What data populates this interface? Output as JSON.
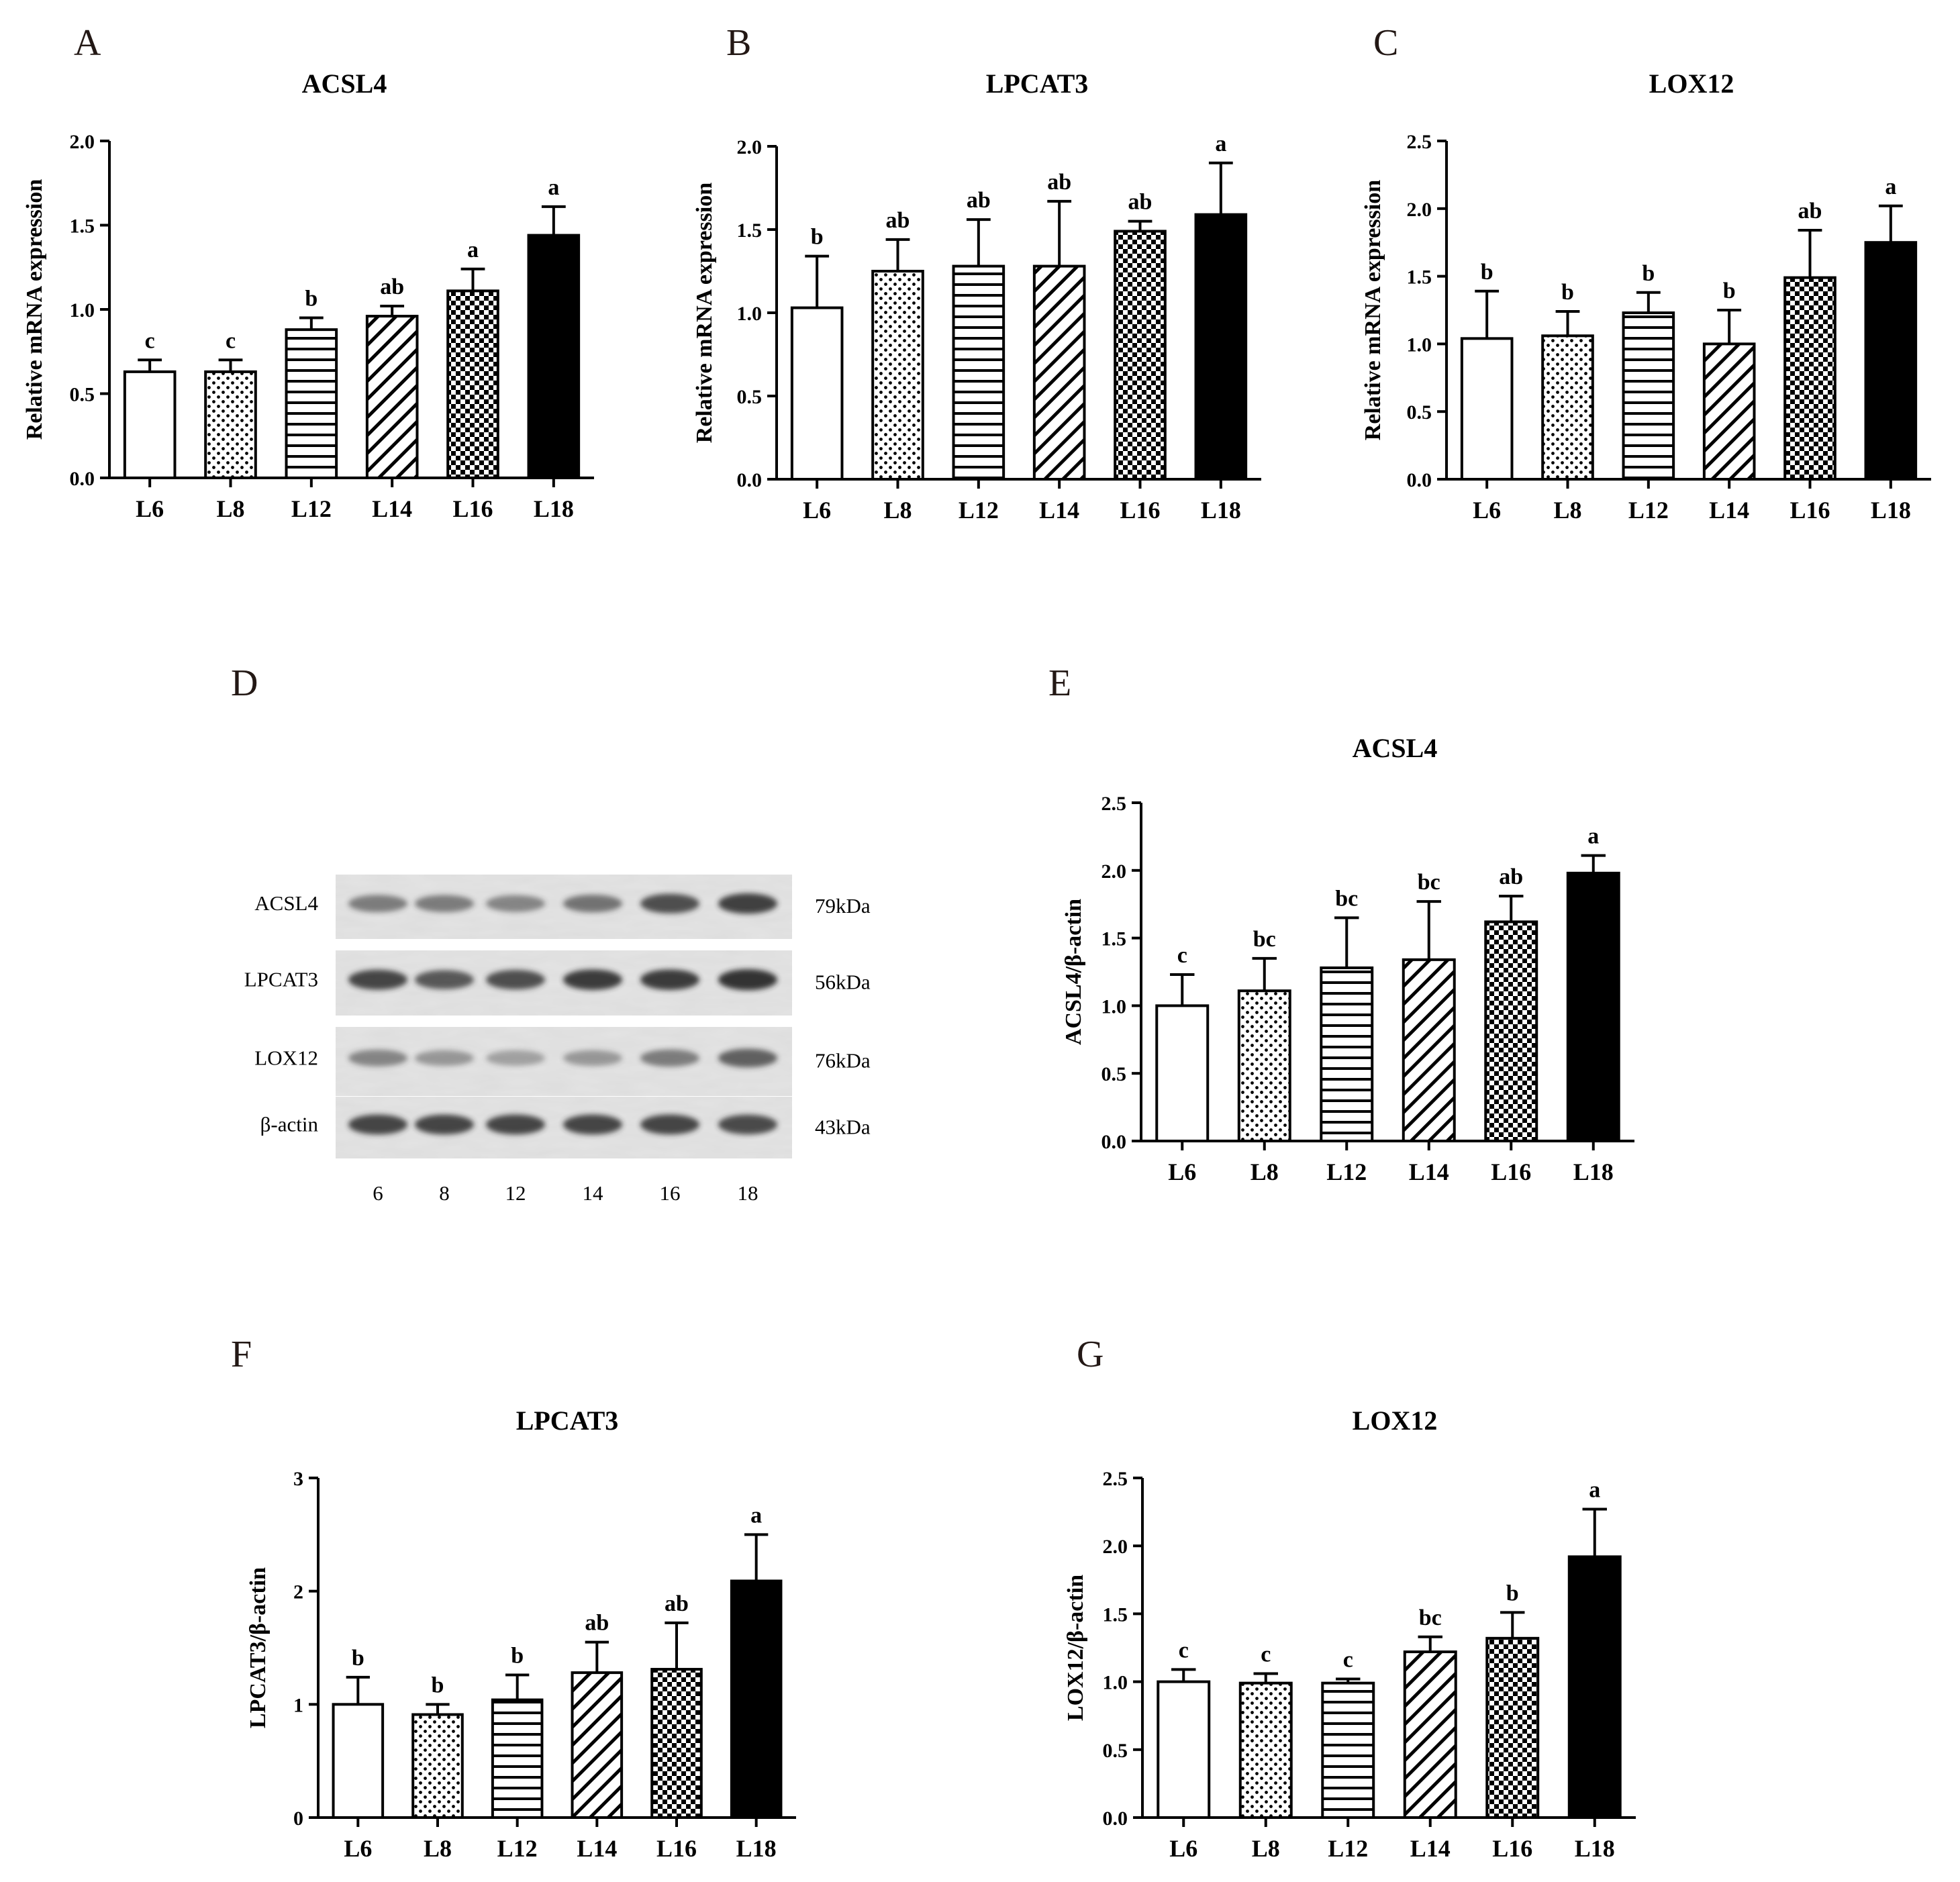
{
  "panels": {
    "A": "A",
    "B": "B",
    "C": "C",
    "D": "D",
    "E": "E",
    "F": "F",
    "G": "G"
  },
  "patterns": {
    "L6": "open",
    "L8": "dots",
    "L12": "horizontal",
    "L14": "diagonal",
    "L16": "checker",
    "L18": "solid"
  },
  "colors": {
    "ink": "#000000",
    "blot_bg": "#e4e4e4",
    "band": "#2a2a2a"
  },
  "chart_data": [
    {
      "id": "A",
      "type": "bar",
      "title": "ACSL4",
      "ylabel": "Relative mRNA expression",
      "ylim": [
        0,
        2.0
      ],
      "yticks": [
        "0.0",
        "0.5",
        "1.0",
        "1.5",
        "2.0"
      ],
      "categories": [
        "L6",
        "L8",
        "L12",
        "L14",
        "L16",
        "L18"
      ],
      "values": [
        0.63,
        0.63,
        0.88,
        0.96,
        1.11,
        1.44
      ],
      "errors": [
        0.07,
        0.07,
        0.07,
        0.06,
        0.13,
        0.17
      ],
      "sig": [
        "c",
        "c",
        "b",
        "ab",
        "a",
        "a"
      ]
    },
    {
      "id": "B",
      "type": "bar",
      "title": "LPCAT3",
      "ylabel": "Relative  mRNA expression",
      "ylim": [
        0,
        2.0
      ],
      "yticks": [
        "0.0",
        "0.5",
        "1.0",
        "1.5",
        "2.0"
      ],
      "categories": [
        "L6",
        "L8",
        "L12",
        "L14",
        "L16",
        "L18"
      ],
      "values": [
        1.03,
        1.25,
        1.28,
        1.28,
        1.49,
        1.59
      ],
      "errors": [
        0.31,
        0.19,
        0.28,
        0.39,
        0.06,
        0.31
      ],
      "sig": [
        "b",
        "ab",
        "ab",
        "ab",
        "ab",
        "a"
      ]
    },
    {
      "id": "C",
      "type": "bar",
      "title": "LOX12",
      "ylabel": "Relative  mRNA expression",
      "ylim": [
        0,
        2.5
      ],
      "yticks": [
        "0.0",
        "0.5",
        "1.0",
        "1.5",
        "2.0",
        "2.5"
      ],
      "categories": [
        "L6",
        "L8",
        "L12",
        "L14",
        "L16",
        "L18"
      ],
      "values": [
        1.04,
        1.06,
        1.23,
        1.0,
        1.49,
        1.75
      ],
      "errors": [
        0.35,
        0.18,
        0.15,
        0.25,
        0.35,
        0.27
      ],
      "sig": [
        "b",
        "b",
        "b",
        "b",
        "ab",
        "a"
      ]
    },
    {
      "id": "E",
      "type": "bar",
      "title": "ACSL4",
      "ylabel": "ACSL4/β-actin",
      "ylim": [
        0,
        2.5
      ],
      "yticks": [
        "0.0",
        "0.5",
        "1.0",
        "1.5",
        "2.0",
        "2.5"
      ],
      "categories": [
        "L6",
        "L8",
        "L12",
        "L14",
        "L16",
        "L18"
      ],
      "values": [
        1.0,
        1.11,
        1.28,
        1.34,
        1.62,
        1.98
      ],
      "errors": [
        0.23,
        0.24,
        0.37,
        0.43,
        0.19,
        0.13
      ],
      "sig": [
        "c",
        "bc",
        "bc",
        "bc",
        "ab",
        "a"
      ]
    },
    {
      "id": "F",
      "type": "bar",
      "title": "LPCAT3",
      "ylabel": "LPCAT3/β-actin",
      "ylim": [
        0,
        3
      ],
      "yticks": [
        "0",
        "1",
        "2",
        "3"
      ],
      "categories": [
        "L6",
        "L8",
        "L12",
        "L14",
        "L16",
        "L18"
      ],
      "values": [
        1.0,
        0.91,
        1.04,
        1.28,
        1.31,
        2.09
      ],
      "errors": [
        0.24,
        0.09,
        0.22,
        0.27,
        0.41,
        0.41
      ],
      "sig": [
        "b",
        "b",
        "b",
        "ab",
        "ab",
        "a"
      ]
    },
    {
      "id": "G",
      "type": "bar",
      "title": "LOX12",
      "ylabel": "LOX12/β-actin",
      "ylim": [
        0,
        2.5
      ],
      "yticks": [
        "0.0",
        "0.5",
        "1.0",
        "1.5",
        "2.0",
        "2.5"
      ],
      "categories": [
        "L6",
        "L8",
        "L12",
        "L14",
        "L16",
        "L18"
      ],
      "values": [
        1.0,
        0.99,
        0.99,
        1.22,
        1.32,
        1.92
      ],
      "errors": [
        0.09,
        0.07,
        0.03,
        0.11,
        0.19,
        0.35
      ],
      "sig": [
        "c",
        "c",
        "c",
        "bc",
        "b",
        "a"
      ]
    }
  ],
  "blot": {
    "rows": [
      {
        "label": "ACSL4",
        "kda": "79kDa",
        "intensity": [
          0.55,
          0.55,
          0.5,
          0.6,
          0.8,
          0.88
        ]
      },
      {
        "label": "LPCAT3",
        "kda": "56kDa",
        "intensity": [
          0.85,
          0.75,
          0.8,
          0.9,
          0.9,
          0.95
        ]
      },
      {
        "label": "LOX12",
        "kda": "76kDa",
        "intensity": [
          0.5,
          0.4,
          0.35,
          0.4,
          0.55,
          0.7
        ]
      },
      {
        "label": "β-actin",
        "kda": "43kDa",
        "intensity": [
          0.85,
          0.85,
          0.85,
          0.85,
          0.85,
          0.82
        ]
      }
    ],
    "lanes": [
      "6",
      "8",
      "12",
      "14",
      "16",
      "18"
    ]
  }
}
